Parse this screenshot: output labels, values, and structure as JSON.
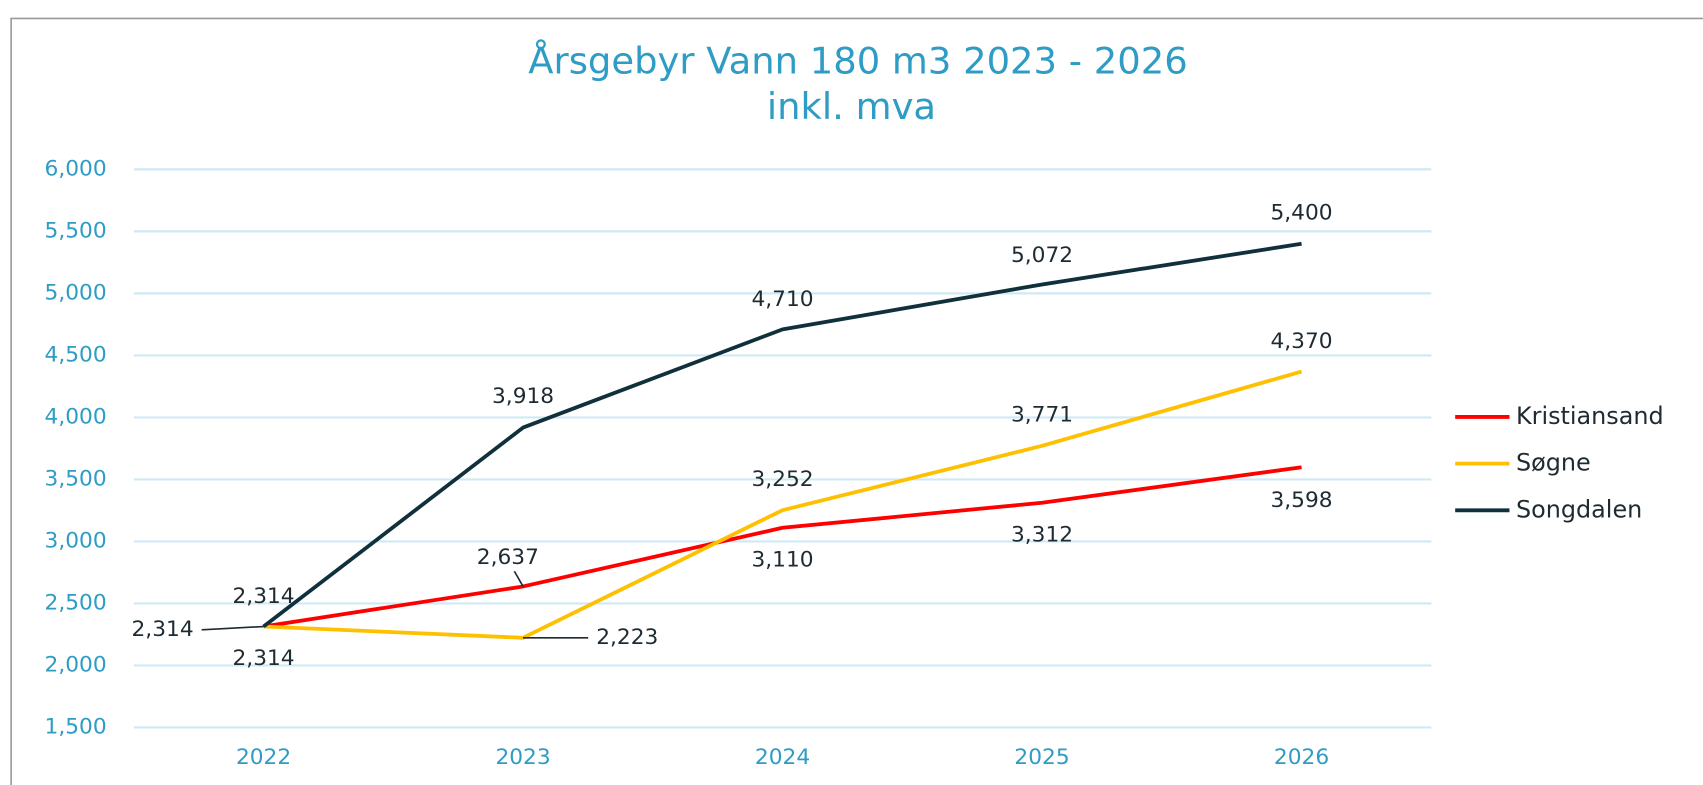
{
  "chart_data": {
    "type": "line",
    "title": "Årsgebyr Vann 180 m3 2023 - 2026",
    "subtitle": "inkl. mva",
    "categories": [
      "2022",
      "2023",
      "2024",
      "2025",
      "2026"
    ],
    "series": [
      {
        "name": "Kristiansand",
        "color": "#ff0000",
        "values": [
          2314,
          2637,
          3110,
          3312,
          3598
        ],
        "value_labels": [
          "2,314",
          "2,637",
          "3,110",
          "3,312",
          "3,598"
        ]
      },
      {
        "name": "Søgne",
        "color": "#ffc000",
        "values": [
          2314,
          2223,
          3252,
          3771,
          4370
        ],
        "value_labels": [
          "2,314",
          "2,223",
          "3,252",
          "3,771",
          "4,370"
        ]
      },
      {
        "name": "Songdalen",
        "color": "#10303c",
        "values": [
          2314,
          3918,
          4710,
          5072,
          5400
        ],
        "value_labels": [
          "2,314",
          "3,918",
          "4,710",
          "5,072",
          "5,400"
        ]
      }
    ],
    "ylim": [
      1500,
      6000
    ],
    "yticks": [
      {
        "value": 1500,
        "label": "1,500"
      },
      {
        "value": 2000,
        "label": "2,000"
      },
      {
        "value": 2500,
        "label": "2,500"
      },
      {
        "value": 3000,
        "label": "3,000"
      },
      {
        "value": 3500,
        "label": "3,500"
      },
      {
        "value": 4000,
        "label": "4,000"
      },
      {
        "value": 4500,
        "label": "4,500"
      },
      {
        "value": 5000,
        "label": "5,000"
      },
      {
        "value": 5500,
        "label": "5,500"
      },
      {
        "value": 6000,
        "label": "6,000"
      }
    ],
    "grid": true,
    "legend": "right"
  }
}
